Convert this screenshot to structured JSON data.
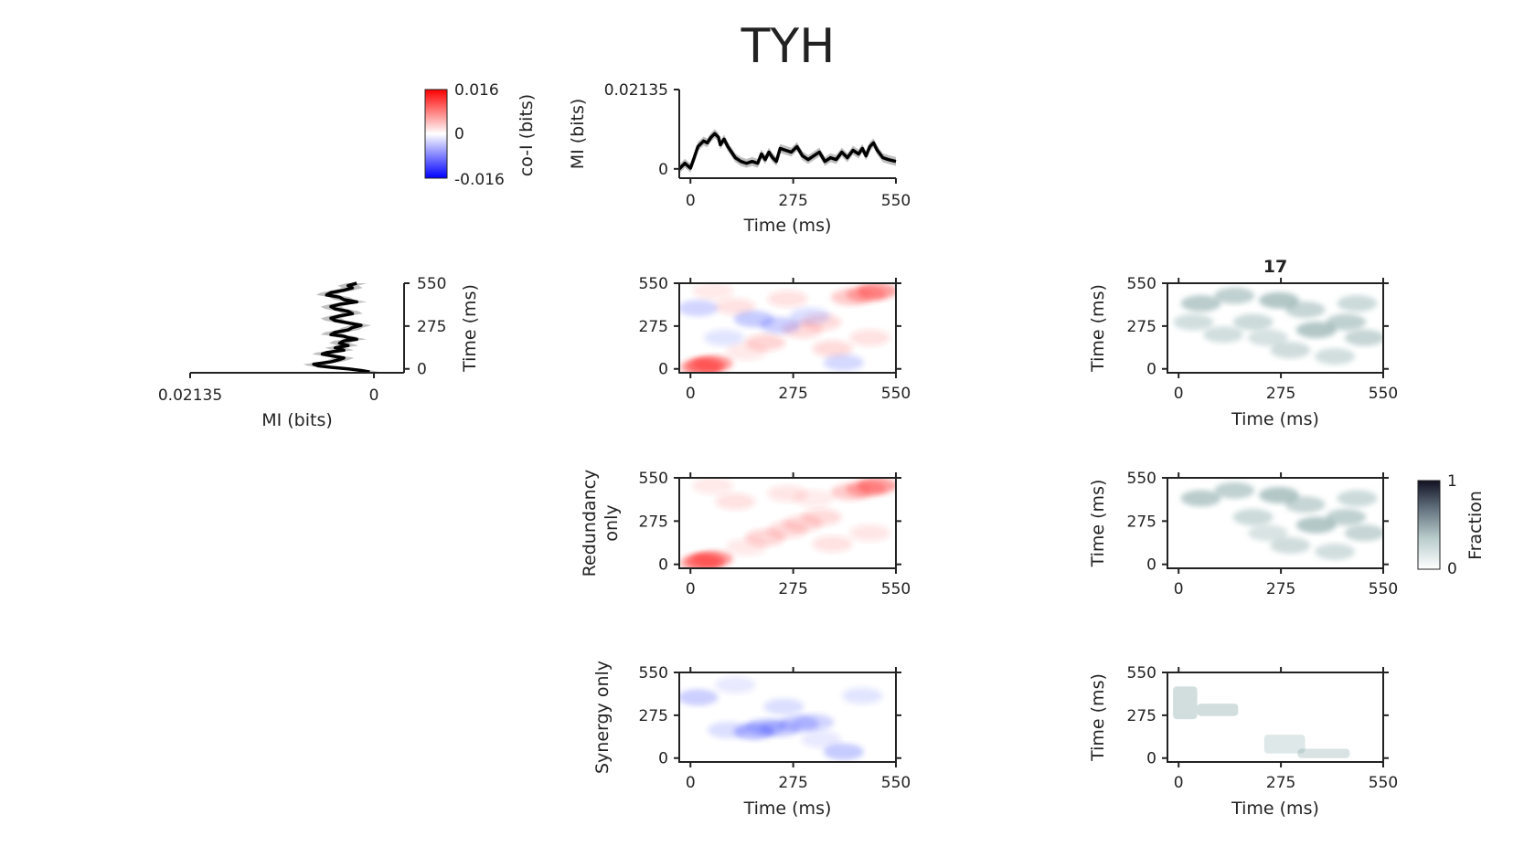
{
  "figure": {
    "title": "TYH",
    "colorbar_coi": {
      "max_label": "0.016",
      "mid_label": "0",
      "min_label": "-0.016",
      "label": "co-I (bits)",
      "colors": {
        "max": "#ff0000",
        "mid": "#ffffff",
        "min": "#0000ff"
      }
    },
    "colorbar_fraction": {
      "max_label": "1",
      "min_label": "0",
      "label": "Fraction",
      "colors": {
        "max": "#111122",
        "min": "#ffffff"
      }
    }
  },
  "chart_data": [
    {
      "id": "mi_top",
      "type": "line",
      "ylabel": "MI (bits)",
      "xlabel": "Time (ms)",
      "xlim": [
        -30,
        550
      ],
      "ylim": [
        -0.0025,
        0.02135
      ],
      "xticks": [
        "0",
        "275",
        "550"
      ],
      "yticks": [
        "0",
        "0.02135"
      ],
      "series": [
        {
          "color": "#000000",
          "band_color": "#c0c0c0",
          "x": [
            -30,
            -15,
            0,
            10,
            20,
            35,
            45,
            55,
            65,
            75,
            80,
            90,
            100,
            110,
            120,
            135,
            150,
            165,
            180,
            190,
            200,
            210,
            220,
            230,
            240,
            255,
            270,
            285,
            300,
            315,
            330,
            345,
            360,
            375,
            390,
            405,
            420,
            435,
            450,
            460,
            470,
            480,
            490,
            500,
            515,
            530,
            550
          ],
          "y": [
            0.0,
            0.0015,
            0.0002,
            0.003,
            0.006,
            0.0075,
            0.007,
            0.0085,
            0.0095,
            0.0085,
            0.0065,
            0.008,
            0.006,
            0.0045,
            0.003,
            0.002,
            0.0015,
            0.002,
            0.0015,
            0.004,
            0.0025,
            0.0045,
            0.003,
            0.002,
            0.0055,
            0.005,
            0.0045,
            0.006,
            0.0035,
            0.0025,
            0.0035,
            0.0045,
            0.002,
            0.003,
            0.0025,
            0.0045,
            0.003,
            0.005,
            0.004,
            0.0055,
            0.0035,
            0.006,
            0.007,
            0.005,
            0.003,
            0.0025,
            0.002
          ]
        }
      ]
    },
    {
      "id": "mi_left",
      "type": "line",
      "orientation": "vertical",
      "x_inverted": true,
      "xlabel": "MI (bits)",
      "ylabel": "Time (ms)",
      "xlim": [
        0.02135,
        -0.0035
      ],
      "ylim": [
        -25,
        550
      ],
      "xticks": [
        "0.02135",
        "0"
      ],
      "yticks": [
        "0",
        "275",
        "550"
      ],
      "series": [
        {
          "color": "#000000",
          "band_color": "#c0c0c0",
          "time": [
            -20,
            -10,
            0,
            10,
            20,
            30,
            45,
            60,
            70,
            80,
            95,
            105,
            120,
            135,
            150,
            165,
            180,
            190,
            200,
            210,
            220,
            235,
            250,
            265,
            280,
            295,
            310,
            325,
            340,
            355,
            370,
            385,
            400,
            415,
            430,
            445,
            460,
            475,
            490,
            505,
            520,
            535,
            550
          ],
          "mi": [
            0.0005,
            0.0015,
            0.003,
            0.005,
            0.0065,
            0.007,
            0.005,
            0.004,
            0.0035,
            0.0045,
            0.006,
            0.0055,
            0.0035,
            0.0045,
            0.003,
            0.004,
            0.0035,
            0.002,
            0.003,
            0.0035,
            0.005,
            0.0045,
            0.003,
            0.0025,
            0.0015,
            0.003,
            0.0045,
            0.005,
            0.004,
            0.0025,
            0.003,
            0.0045,
            0.005,
            0.004,
            0.002,
            0.0035,
            0.004,
            0.0055,
            0.005,
            0.0035,
            0.0025,
            0.003,
            0.002
          ]
        }
      ]
    },
    {
      "id": "coi_all",
      "type": "heatmap",
      "colormap": "bwr",
      "xlim": [
        -30,
        550
      ],
      "ylim": [
        -25,
        550
      ],
      "xticks": [
        "0",
        "275",
        "550"
      ],
      "yticks": [
        "0",
        "275",
        "550"
      ],
      "blobs": [
        {
          "x": 40,
          "y": 20,
          "v": 0.9
        },
        {
          "x": 60,
          "y": 35,
          "v": 0.8
        },
        {
          "x": 25,
          "y": 10,
          "v": 0.7
        },
        {
          "x": 500,
          "y": 500,
          "v": 0.8
        },
        {
          "x": 470,
          "y": 480,
          "v": 0.6
        },
        {
          "x": 430,
          "y": 460,
          "v": 0.45
        },
        {
          "x": 200,
          "y": 170,
          "v": 0.35
        },
        {
          "x": 300,
          "y": 250,
          "v": 0.3
        },
        {
          "x": 350,
          "y": 300,
          "v": 0.3
        },
        {
          "x": 120,
          "y": 400,
          "v": 0.25
        },
        {
          "x": 260,
          "y": 450,
          "v": 0.25
        },
        {
          "x": 380,
          "y": 130,
          "v": 0.3
        },
        {
          "x": 170,
          "y": 320,
          "v": -0.5
        },
        {
          "x": 240,
          "y": 280,
          "v": -0.45
        },
        {
          "x": 20,
          "y": 390,
          "v": -0.4
        },
        {
          "x": 410,
          "y": 40,
          "v": -0.35
        },
        {
          "x": 320,
          "y": 340,
          "v": -0.3
        },
        {
          "x": 90,
          "y": 200,
          "v": -0.25
        },
        {
          "x": 150,
          "y": 110,
          "v": 0.2
        },
        {
          "x": 480,
          "y": 200,
          "v": 0.25
        },
        {
          "x": 60,
          "y": 500,
          "v": 0.2
        }
      ]
    },
    {
      "id": "count_all",
      "type": "heatmap",
      "colormap": "bone_r",
      "title": "17",
      "xlabel": "Time (ms)",
      "ylabel": "Time (ms)",
      "xlim": [
        -30,
        550
      ],
      "ylim": [
        -25,
        550
      ],
      "xticks": [
        "0",
        "275",
        "550"
      ],
      "yticks": [
        "0",
        "275",
        "550"
      ],
      "blobs": [
        {
          "x": 60,
          "y": 420,
          "v": 0.22
        },
        {
          "x": 150,
          "y": 470,
          "v": 0.2
        },
        {
          "x": 270,
          "y": 440,
          "v": 0.24
        },
        {
          "x": 370,
          "y": 250,
          "v": 0.24
        },
        {
          "x": 450,
          "y": 300,
          "v": 0.2
        },
        {
          "x": 500,
          "y": 200,
          "v": 0.18
        },
        {
          "x": 200,
          "y": 300,
          "v": 0.16
        },
        {
          "x": 120,
          "y": 220,
          "v": 0.14
        },
        {
          "x": 300,
          "y": 120,
          "v": 0.15
        },
        {
          "x": 420,
          "y": 80,
          "v": 0.14
        },
        {
          "x": 480,
          "y": 420,
          "v": 0.16
        },
        {
          "x": 40,
          "y": 300,
          "v": 0.14
        },
        {
          "x": 340,
          "y": 380,
          "v": 0.18
        },
        {
          "x": 240,
          "y": 200,
          "v": 0.13
        }
      ]
    },
    {
      "id": "coi_redundancy",
      "type": "heatmap",
      "colormap": "bwr",
      "ylabel": "Redundancy only",
      "xlim": [
        -30,
        550
      ],
      "ylim": [
        -25,
        550
      ],
      "xticks": [
        "0",
        "275",
        "550"
      ],
      "yticks": [
        "0",
        "275",
        "550"
      ],
      "blobs": [
        {
          "x": 40,
          "y": 20,
          "v": 0.9
        },
        {
          "x": 60,
          "y": 35,
          "v": 0.8
        },
        {
          "x": 25,
          "y": 10,
          "v": 0.7
        },
        {
          "x": 500,
          "y": 500,
          "v": 0.8
        },
        {
          "x": 470,
          "y": 480,
          "v": 0.6
        },
        {
          "x": 430,
          "y": 460,
          "v": 0.45
        },
        {
          "x": 200,
          "y": 170,
          "v": 0.35
        },
        {
          "x": 260,
          "y": 220,
          "v": 0.3
        },
        {
          "x": 300,
          "y": 260,
          "v": 0.3
        },
        {
          "x": 350,
          "y": 300,
          "v": 0.3
        },
        {
          "x": 120,
          "y": 400,
          "v": 0.25
        },
        {
          "x": 260,
          "y": 450,
          "v": 0.22
        },
        {
          "x": 380,
          "y": 130,
          "v": 0.25
        },
        {
          "x": 150,
          "y": 110,
          "v": 0.2
        },
        {
          "x": 480,
          "y": 200,
          "v": 0.22
        },
        {
          "x": 60,
          "y": 500,
          "v": 0.2
        },
        {
          "x": 330,
          "y": 420,
          "v": 0.18
        }
      ]
    },
    {
      "id": "count_redundancy",
      "type": "heatmap",
      "colormap": "bone_r",
      "ylabel": "Time (ms)",
      "xlim": [
        -30,
        550
      ],
      "ylim": [
        -25,
        550
      ],
      "xticks": [
        "0",
        "275",
        "550"
      ],
      "yticks": [
        "0",
        "275",
        "550"
      ],
      "blobs": [
        {
          "x": 60,
          "y": 420,
          "v": 0.22
        },
        {
          "x": 150,
          "y": 470,
          "v": 0.2
        },
        {
          "x": 270,
          "y": 440,
          "v": 0.24
        },
        {
          "x": 370,
          "y": 250,
          "v": 0.24
        },
        {
          "x": 450,
          "y": 300,
          "v": 0.2
        },
        {
          "x": 500,
          "y": 200,
          "v": 0.18
        },
        {
          "x": 200,
          "y": 300,
          "v": 0.16
        },
        {
          "x": 300,
          "y": 120,
          "v": 0.15
        },
        {
          "x": 420,
          "y": 80,
          "v": 0.14
        },
        {
          "x": 480,
          "y": 420,
          "v": 0.16
        },
        {
          "x": 340,
          "y": 380,
          "v": 0.18
        },
        {
          "x": 240,
          "y": 200,
          "v": 0.12
        }
      ]
    },
    {
      "id": "coi_synergy",
      "type": "heatmap",
      "colormap": "bwr",
      "ylabel": "Synergy only",
      "xlabel": "Time (ms)",
      "xlim": [
        -30,
        550
      ],
      "ylim": [
        -25,
        550
      ],
      "xticks": [
        "0",
        "275",
        "550"
      ],
      "yticks": [
        "0",
        "275",
        "550"
      ],
      "blobs": [
        {
          "x": 170,
          "y": 170,
          "v": -0.6
        },
        {
          "x": 200,
          "y": 200,
          "v": -0.5
        },
        {
          "x": 240,
          "y": 190,
          "v": -0.45
        },
        {
          "x": 290,
          "y": 220,
          "v": -0.45
        },
        {
          "x": 330,
          "y": 230,
          "v": -0.4
        },
        {
          "x": 20,
          "y": 390,
          "v": -0.45
        },
        {
          "x": 410,
          "y": 40,
          "v": -0.5
        },
        {
          "x": 100,
          "y": 180,
          "v": -0.3
        },
        {
          "x": 250,
          "y": 330,
          "v": -0.3
        },
        {
          "x": 460,
          "y": 400,
          "v": -0.25
        },
        {
          "x": 120,
          "y": 470,
          "v": -0.2
        },
        {
          "x": 350,
          "y": 120,
          "v": -0.2
        }
      ]
    },
    {
      "id": "count_synergy",
      "type": "heatmap",
      "colormap": "bone_r",
      "xlabel": "Time (ms)",
      "ylabel": "Time (ms)",
      "xlim": [
        -30,
        550
      ],
      "ylim": [
        -25,
        550
      ],
      "xticks": [
        "0",
        "275",
        "550"
      ],
      "yticks": [
        "0",
        "275",
        "550"
      ],
      "regions": [
        {
          "x0": -15,
          "x1": 50,
          "y0": 250,
          "y1": 460,
          "v": 0.14
        },
        {
          "x0": 50,
          "x1": 160,
          "y0": 270,
          "y1": 350,
          "v": 0.14
        },
        {
          "x0": 230,
          "x1": 340,
          "y0": 30,
          "y1": 150,
          "v": 0.1
        },
        {
          "x0": 320,
          "x1": 460,
          "y0": 0,
          "y1": 60,
          "v": 0.12
        }
      ]
    }
  ]
}
